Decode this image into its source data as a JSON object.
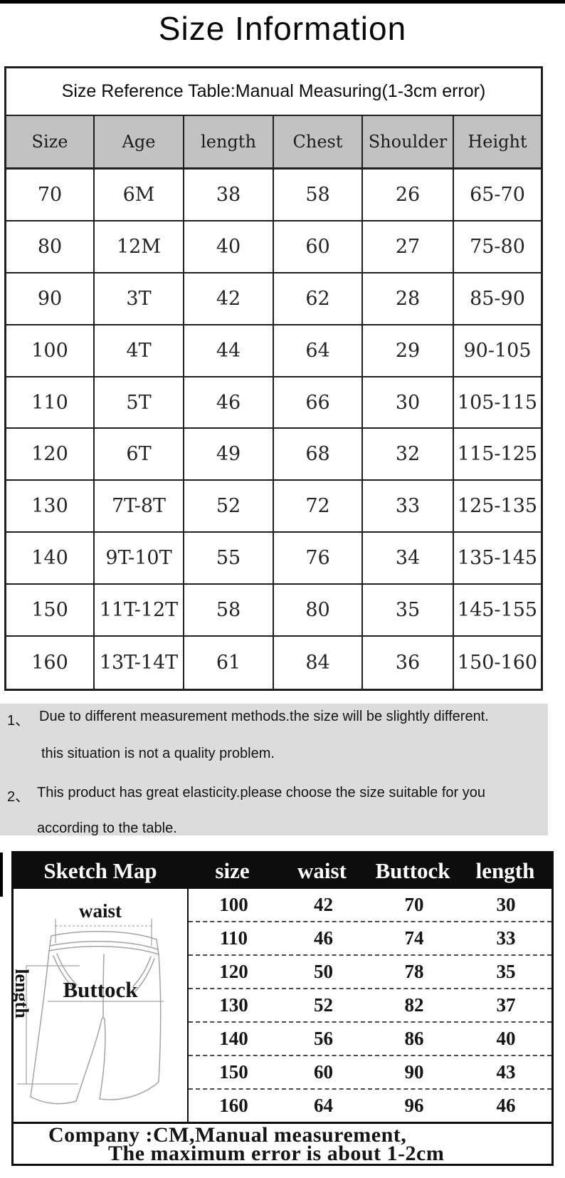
{
  "title": "Size Information",
  "size_table": {
    "caption": "Size Reference Table:Manual Measuring(1-3cm error)",
    "columns": [
      "Size",
      "Age",
      "length",
      "Chest",
      "Shoulder",
      "Height"
    ],
    "rows": [
      [
        "70",
        "6M",
        "38",
        "58",
        "26",
        "65-70"
      ],
      [
        "80",
        "12M",
        "40",
        "60",
        "27",
        "75-80"
      ],
      [
        "90",
        "3T",
        "42",
        "62",
        "28",
        "85-90"
      ],
      [
        "100",
        "4T",
        "44",
        "64",
        "29",
        "90-105"
      ],
      [
        "110",
        "5T",
        "46",
        "66",
        "30",
        "105-115"
      ],
      [
        "120",
        "6T",
        "49",
        "68",
        "32",
        "115-125"
      ],
      [
        "130",
        "7T-8T",
        "52",
        "72",
        "33",
        "125-135"
      ],
      [
        "140",
        "9T-10T",
        "55",
        "76",
        "34",
        "135-145"
      ],
      [
        "150",
        "11T-12T",
        "58",
        "80",
        "35",
        "145-155"
      ],
      [
        "160",
        "13T-14T",
        "61",
        "84",
        "36",
        "150-160"
      ]
    ]
  },
  "notes": {
    "item1": {
      "marker": "1、",
      "line1": "Due to different measurement methods.the size will be slightly different.",
      "line2": "this situation is not a quality problem."
    },
    "item2": {
      "marker": "2、",
      "line1": "This product has great elasticity.please choose the size suitable for you",
      "line2": "according to the table."
    }
  },
  "sketch_table": {
    "title": "Sketch Map",
    "columns": [
      "size",
      "waist",
      "Buttock",
      "length"
    ],
    "sketch_labels": {
      "waist": "waist",
      "buttock": "Buttock",
      "length": "length"
    },
    "rows": [
      [
        "100",
        "42",
        "70",
        "30"
      ],
      [
        "110",
        "46",
        "74",
        "33"
      ],
      [
        "120",
        "50",
        "78",
        "35"
      ],
      [
        "130",
        "52",
        "82",
        "37"
      ],
      [
        "140",
        "56",
        "86",
        "40"
      ],
      [
        "150",
        "60",
        "90",
        "43"
      ],
      [
        "160",
        "64",
        "96",
        "46"
      ]
    ],
    "footer_line1": "Company :CM,Manual measurement,",
    "footer_line2": "The maximum error is about 1-2cm"
  },
  "colors": {
    "table_header_bg": "#c2c2c2",
    "notes_bg": "#dcdcdc",
    "sketch_header_bg": "#0d0d0d",
    "border": "#1f1f1f"
  }
}
